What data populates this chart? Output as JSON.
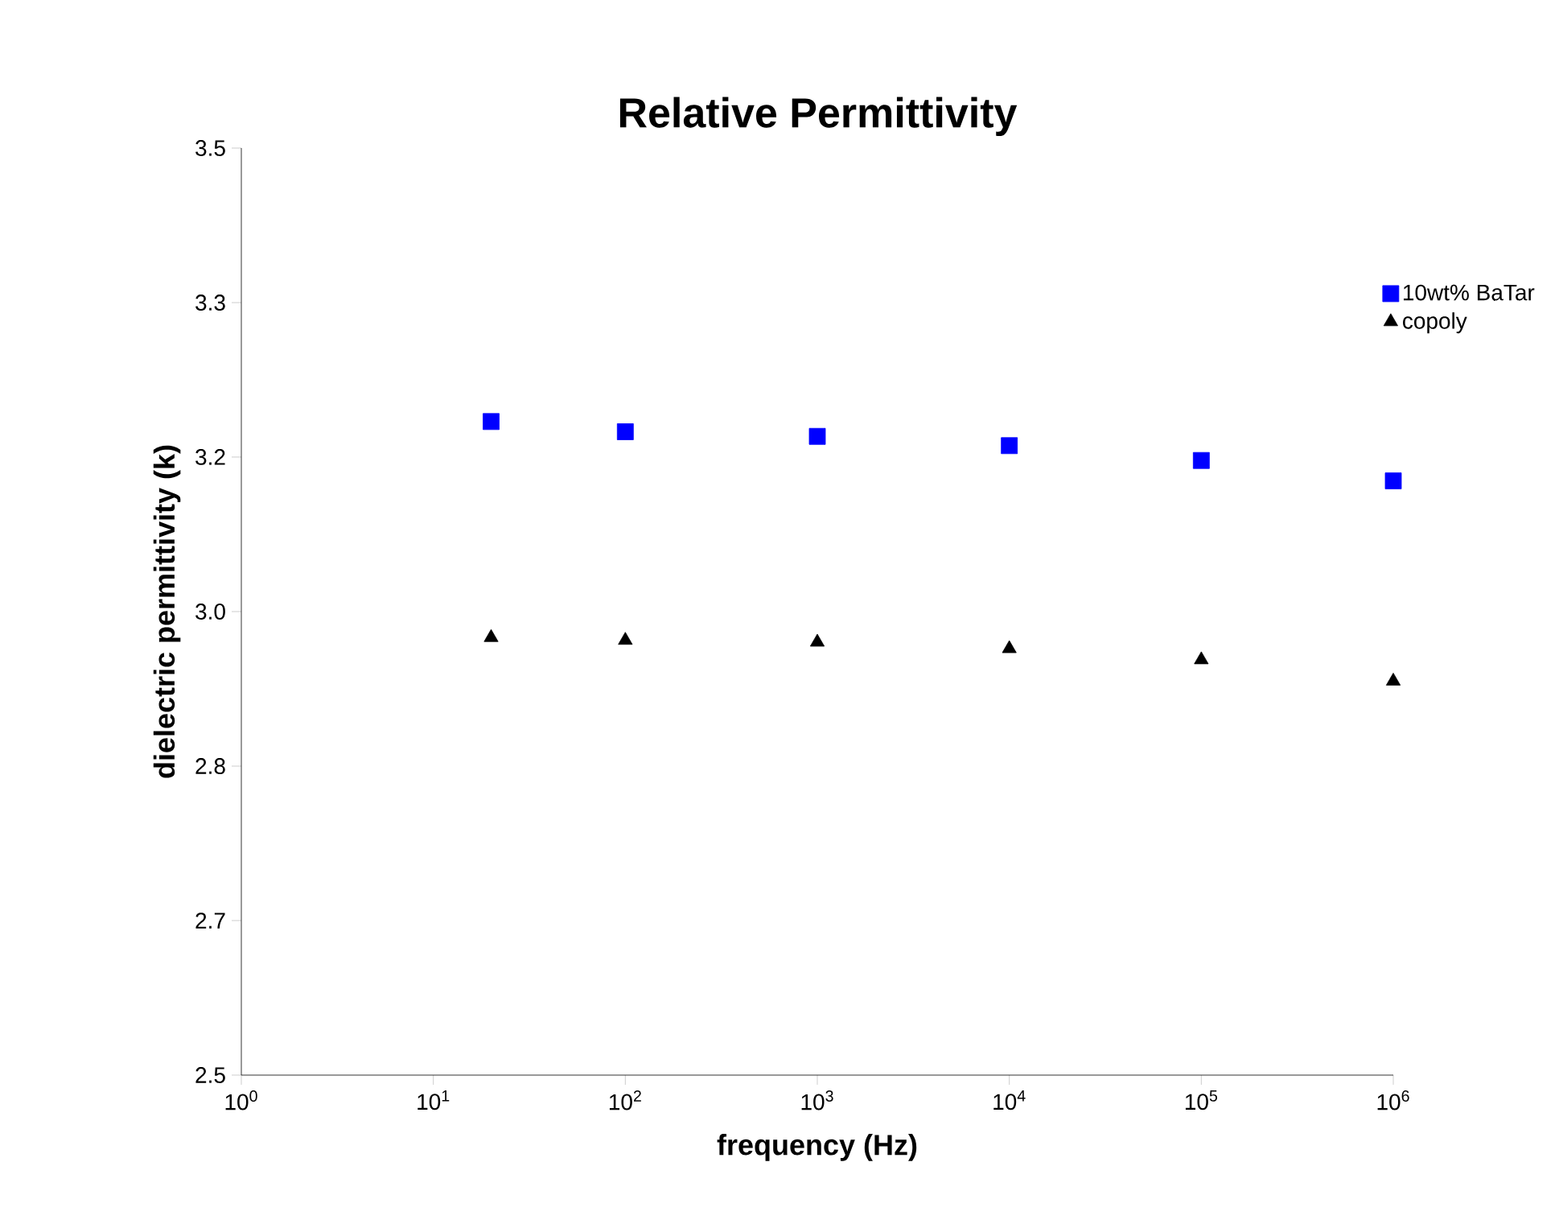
{
  "chart_data": {
    "type": "scatter",
    "title": "Relative Permittivity",
    "xlabel": "frequency (Hz)",
    "ylabel": "dielectric permittivity (k)",
    "x": [
      20,
      100,
      1000,
      10000,
      100000,
      1000000
    ],
    "series": [
      {
        "name": "10wt% BaTar",
        "color": "#0000ff",
        "marker": "square",
        "values": [
          3.205,
          3.194,
          3.189,
          3.179,
          3.163,
          3.141
        ]
      },
      {
        "name": "copoly",
        "color": "#000000",
        "marker": "triangle",
        "values": [
          2.972,
          2.969,
          2.967,
          2.96,
          2.948,
          2.925
        ]
      }
    ],
    "log": "x",
    "xlim": [
      1,
      1000000
    ],
    "xticks": [
      {
        "value": 1,
        "label": "10$^{0}$"
      },
      {
        "value": 10,
        "label": "10$^{1}$"
      },
      {
        "value": 100,
        "label": "10$^{2}$"
      },
      {
        "value": 1000,
        "label": "10$^{3}$"
      },
      {
        "value": 10000,
        "label": "10$^{4}$"
      },
      {
        "value": 100000,
        "label": "10$^{5}$"
      },
      {
        "value": 1000000,
        "label": "10$^{6}$"
      }
    ],
    "ylim": [
      2.5,
      3.5
    ],
    "yticks": [
      2.5,
      {
        "value": 2.6667,
        "label": "2.7"
      },
      {
        "value": 2.8333,
        "label": "2.8"
      },
      {
        "value": 3,
        "label": "3.0"
      },
      {
        "value": 3.1667,
        "label": "3.2"
      },
      {
        "value": 3.3333,
        "label": "3.3"
      },
      3.5
    ],
    "legend": "top right",
    "grid": false
  }
}
